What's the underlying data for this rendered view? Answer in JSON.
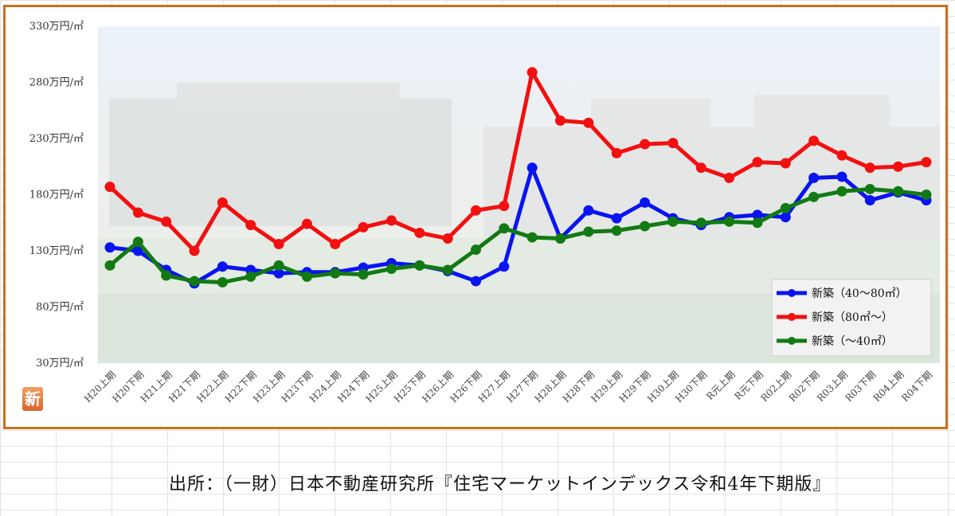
{
  "chart_data": {
    "type": "line",
    "ylim": [
      30,
      330
    ],
    "yticks": [
      "330万円/㎡",
      "280万円/㎡",
      "230万円/㎡",
      "180万円/㎡",
      "130万円/㎡",
      "80万円/㎡",
      "30万円/㎡"
    ],
    "ytick_values": [
      330,
      280,
      230,
      180,
      130,
      80,
      30
    ],
    "categories": [
      "H20上期",
      "H20下期",
      "H21上期",
      "H21下期",
      "H22上期",
      "H22下期",
      "H23上期",
      "H23下期",
      "H24上期",
      "H24下期",
      "H25上期",
      "H25下期",
      "H26上期",
      "H26下期",
      "H27上期",
      "H27下期",
      "H28上期",
      "H28下期",
      "H29上期",
      "H29下期",
      "H30上期",
      "H30下期",
      "R元上期",
      "R元下期",
      "R02上期",
      "R02下期",
      "R03上期",
      "R03下期",
      "R04上期",
      "R04下期"
    ],
    "series": [
      {
        "name": "新築（40～80㎡）",
        "color": "#0a14f0",
        "values": [
          133,
          130,
          113,
          101,
          116,
          113,
          110,
          111,
          111,
          115,
          119,
          117,
          112,
          103,
          116,
          204,
          141,
          166,
          159,
          173,
          159,
          153,
          160,
          162,
          160,
          195,
          196,
          175,
          182,
          175
        ]
      },
      {
        "name": "新築（80㎡～）",
        "color": "#f21010",
        "values": [
          187,
          164,
          156,
          130,
          173,
          153,
          136,
          154,
          136,
          151,
          157,
          146,
          141,
          166,
          170,
          289,
          246,
          244,
          217,
          225,
          226,
          204,
          195,
          209,
          208,
          228,
          215,
          204,
          205,
          209
        ]
      },
      {
        "name": "新築（～40㎡）",
        "color": "#127a12",
        "values": [
          117,
          138,
          108,
          103,
          102,
          107,
          117,
          107,
          110,
          109,
          114,
          117,
          113,
          131,
          150,
          142,
          141,
          147,
          148,
          152,
          156,
          155,
          156,
          155,
          168,
          178,
          183,
          185,
          183,
          180
        ]
      }
    ],
    "legend_position": "bottom-right"
  },
  "logo_text": "新",
  "source": "出所：（一財）日本不動産研究所『住宅マーケットインデックス令和4年下期版』"
}
